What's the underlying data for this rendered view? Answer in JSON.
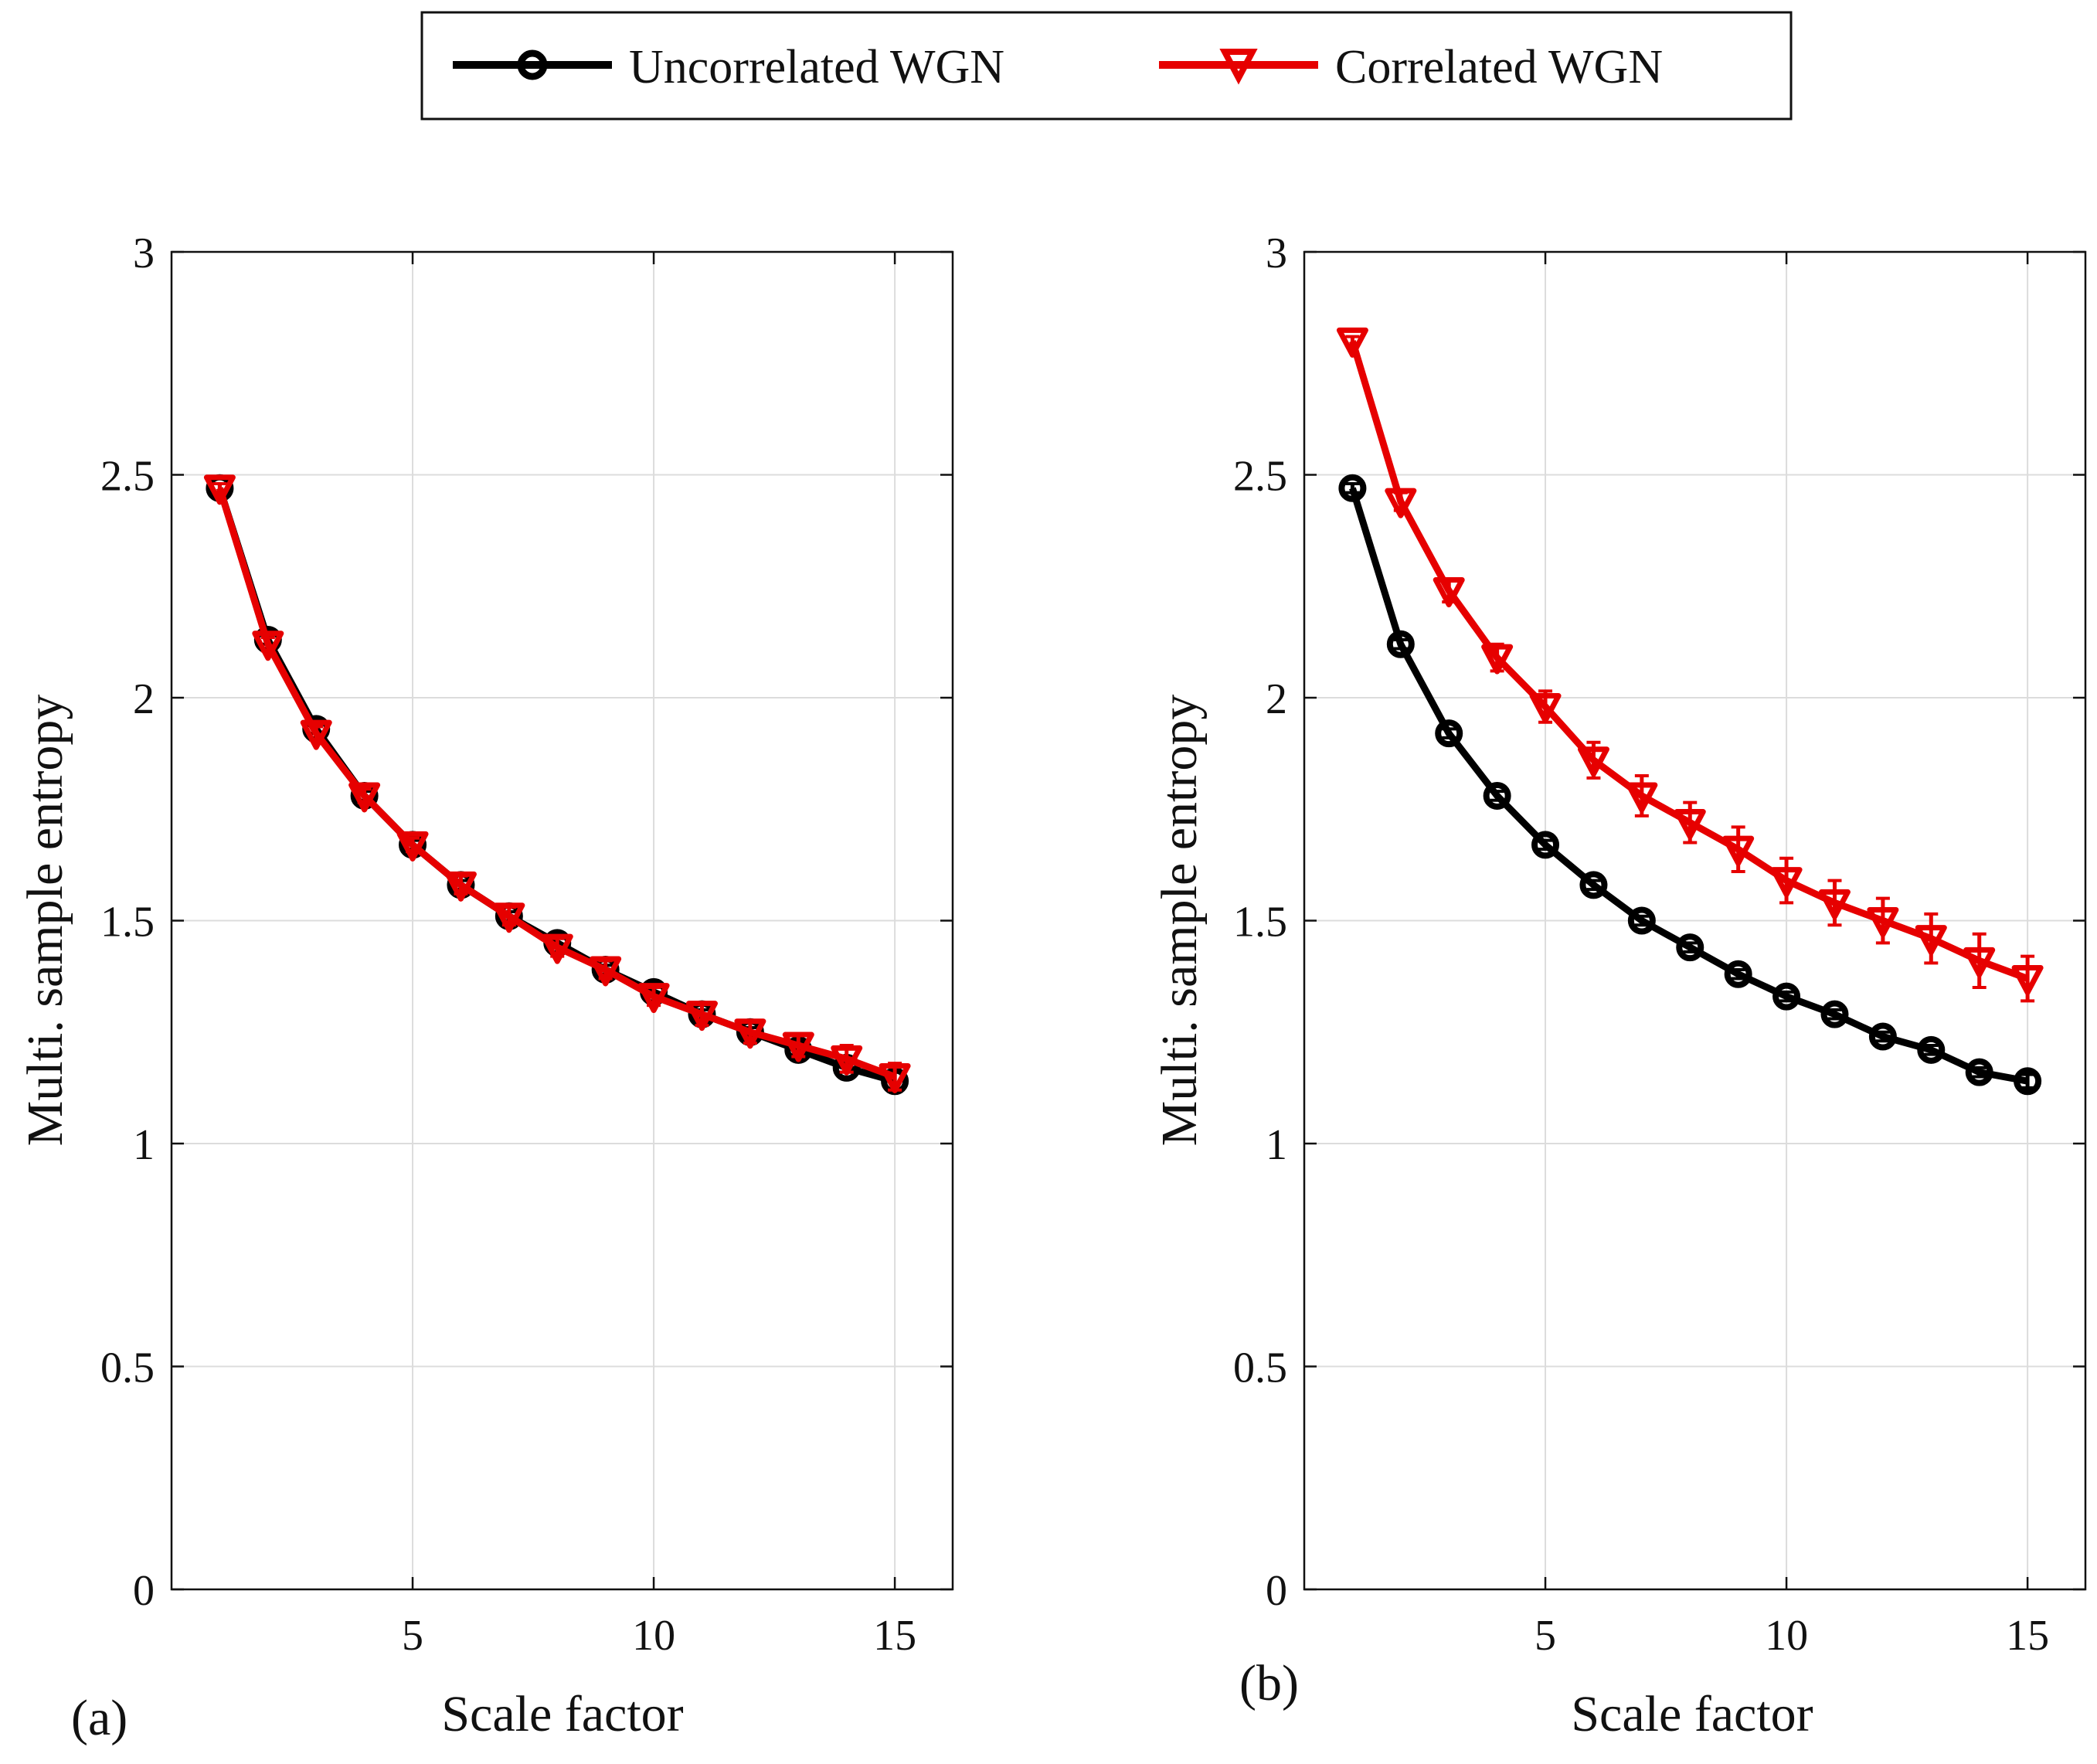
{
  "legend": {
    "entries": [
      {
        "name": "Uncorrelated WGN",
        "color": "#000000",
        "marker": "circle-icon"
      },
      {
        "name": "Correlated WGN",
        "color": "#e60000",
        "marker": "down-triangle-icon"
      }
    ]
  },
  "chart_data": [
    {
      "type": "line",
      "panel_label": "(a)",
      "xlabel": "Scale factor",
      "ylabel": "Multi. sample entropy",
      "xlim": [
        0,
        16.2
      ],
      "ylim": [
        0,
        3
      ],
      "xticks": [
        5,
        10,
        15
      ],
      "xtick_labels": [
        "5",
        "10",
        "15"
      ],
      "yticks": [
        0,
        0.5,
        1,
        1.5,
        2,
        2.5,
        3
      ],
      "ytick_labels": [
        "0",
        "0.5",
        "1",
        "1.5",
        "2",
        "2.5",
        "3"
      ],
      "grid": true,
      "x": [
        1,
        2,
        3,
        4,
        5,
        6,
        7,
        8,
        9,
        10,
        11,
        12,
        13,
        14,
        15
      ],
      "series": [
        {
          "name": "Uncorrelated WGN",
          "color": "#000000",
          "marker": "circle",
          "values": [
            2.47,
            2.13,
            1.93,
            1.78,
            1.67,
            1.58,
            1.51,
            1.45,
            1.39,
            1.34,
            1.29,
            1.25,
            1.21,
            1.17,
            1.14
          ],
          "errors": [
            0.01,
            0.01,
            0.01,
            0.01,
            0.01,
            0.01,
            0.01,
            0.01,
            0.01,
            0.01,
            0.01,
            0.01,
            0.01,
            0.01,
            0.02
          ]
        },
        {
          "name": "Correlated WGN",
          "color": "#e60000",
          "marker": "triangle-down",
          "values": [
            2.47,
            2.12,
            1.92,
            1.78,
            1.67,
            1.58,
            1.51,
            1.44,
            1.39,
            1.33,
            1.29,
            1.25,
            1.22,
            1.19,
            1.15
          ],
          "errors": [
            0.01,
            0.015,
            0.015,
            0.015,
            0.015,
            0.02,
            0.02,
            0.02,
            0.02,
            0.02,
            0.025,
            0.025,
            0.025,
            0.03,
            0.03
          ]
        }
      ]
    },
    {
      "type": "line",
      "panel_label": "(b)",
      "xlabel": "Scale factor",
      "ylabel": "Multi. sample entropy",
      "xlim": [
        0,
        16.2
      ],
      "ylim": [
        0,
        3
      ],
      "xticks": [
        5,
        10,
        15
      ],
      "xtick_labels": [
        "5",
        "10",
        "15"
      ],
      "yticks": [
        0,
        0.5,
        1,
        1.5,
        2,
        2.5,
        3
      ],
      "ytick_labels": [
        "0",
        "0.5",
        "1",
        "1.5",
        "2",
        "2.5",
        "3"
      ],
      "grid": true,
      "x": [
        1,
        2,
        3,
        4,
        5,
        6,
        7,
        8,
        9,
        10,
        11,
        12,
        13,
        14,
        15
      ],
      "series": [
        {
          "name": "Uncorrelated WGN",
          "color": "#000000",
          "marker": "circle",
          "values": [
            2.47,
            2.12,
            1.92,
            1.78,
            1.67,
            1.58,
            1.5,
            1.44,
            1.38,
            1.33,
            1.29,
            1.24,
            1.21,
            1.16,
            1.14
          ],
          "errors": [
            0.01,
            0.01,
            0.01,
            0.01,
            0.01,
            0.01,
            0.01,
            0.01,
            0.01,
            0.01,
            0.01,
            0.01,
            0.01,
            0.01,
            0.015
          ]
        },
        {
          "name": "Correlated WGN",
          "color": "#e60000",
          "marker": "triangle-down",
          "values": [
            2.8,
            2.44,
            2.24,
            2.09,
            1.98,
            1.86,
            1.78,
            1.72,
            1.66,
            1.59,
            1.54,
            1.5,
            1.46,
            1.41,
            1.37
          ],
          "errors": [
            0.01,
            0.02,
            0.025,
            0.03,
            0.035,
            0.04,
            0.045,
            0.045,
            0.05,
            0.05,
            0.05,
            0.05,
            0.055,
            0.06,
            0.05
          ]
        }
      ]
    }
  ]
}
